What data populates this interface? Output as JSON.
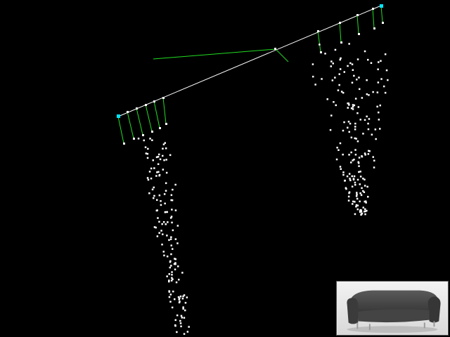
{
  "colors": {
    "background": "#000000",
    "line": "#ffffff",
    "green": "#22dd22",
    "cyan": "#00e5ff",
    "point": "#ffffff"
  },
  "thumbnail": {
    "subject": "sofa-photo"
  }
}
